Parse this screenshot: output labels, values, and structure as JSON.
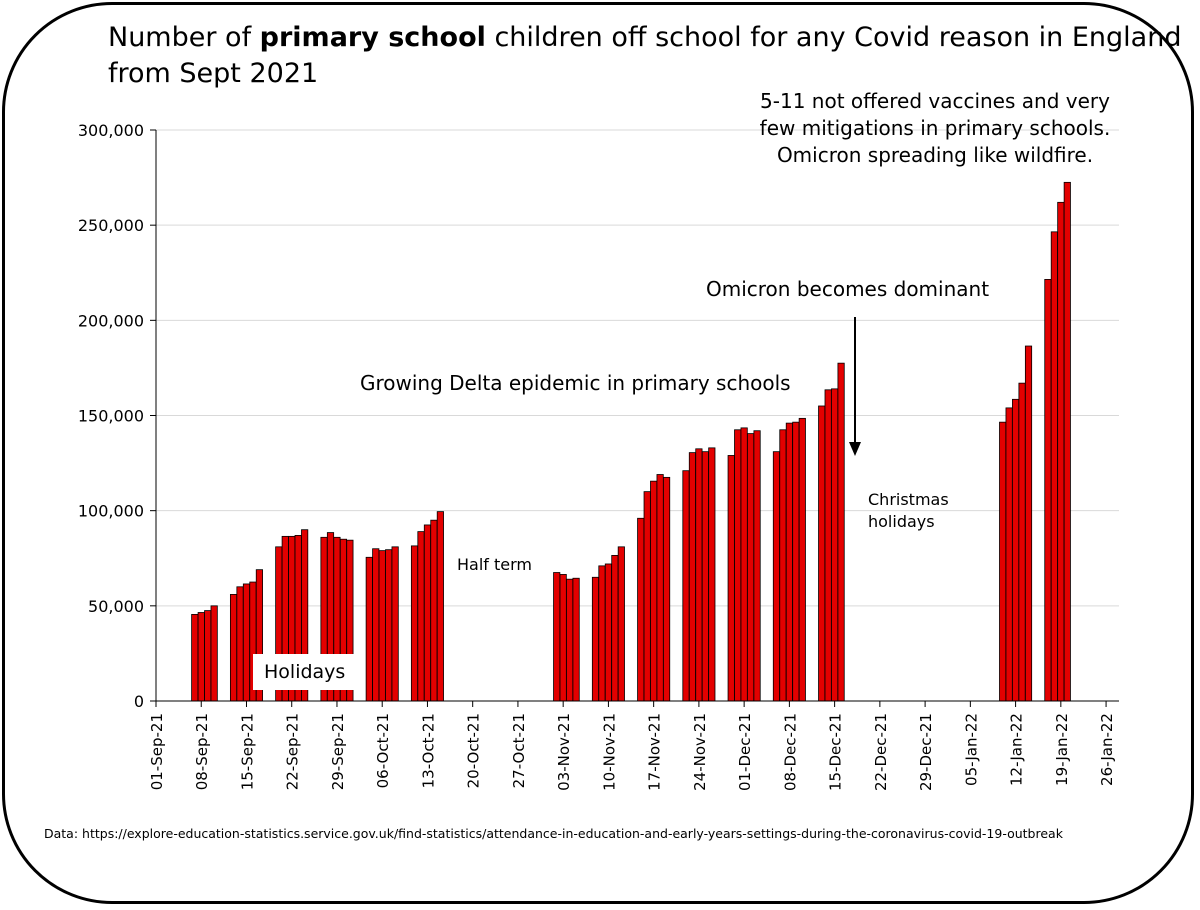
{
  "title": {
    "prefix": "Number of ",
    "bold": "primary school",
    "suffix": " children off school for any Covid reason in England",
    "line2": "from Sept 2021"
  },
  "source": "Data: https://explore-education-statistics.service.gov.uk/find-statistics/attendance-in-education-and-early-years-settings-during-the-coronavirus-covid-19-outbreak",
  "colors": {
    "bar": "#e30000",
    "grid": "#d9d9d9",
    "axis": "#000000"
  },
  "annotations": {
    "vaccines": [
      "5-11 not offered vaccines and very",
      "few mitigations in primary schools.",
      "Omicron spreading like wildfire."
    ],
    "omicron": "Omicron becomes dominant",
    "delta": "Growing Delta epidemic in primary schools",
    "half_term": "Half term",
    "christmas": [
      "Christmas",
      "holidays"
    ],
    "holidays": "Holidays"
  },
  "chart_data": {
    "type": "bar",
    "xlabel": "",
    "ylabel": "",
    "ylim": [
      0,
      300000
    ],
    "grid": true,
    "yticks": [
      0,
      50000,
      100000,
      150000,
      200000,
      250000,
      300000
    ],
    "ytick_labels": [
      "0",
      "50,000",
      "100,000",
      "150,000",
      "200,000",
      "250,000",
      "300,000"
    ],
    "xlim": [
      "2021-09-01",
      "2022-01-28"
    ],
    "xticks": [
      "2021-09-01",
      "2021-09-08",
      "2021-09-15",
      "2021-09-22",
      "2021-09-29",
      "2021-10-06",
      "2021-10-13",
      "2021-10-20",
      "2021-10-27",
      "2021-11-03",
      "2021-11-10",
      "2021-11-17",
      "2021-11-24",
      "2021-12-01",
      "2021-12-08",
      "2021-12-15",
      "2021-12-22",
      "2021-12-29",
      "2022-01-05",
      "2022-01-12",
      "2022-01-19",
      "2022-01-26"
    ],
    "xtick_labels": [
      "01-Sep-21",
      "08-Sep-21",
      "15-Sep-21",
      "22-Sep-21",
      "29-Sep-21",
      "06-Oct-21",
      "13-Oct-21",
      "20-Oct-21",
      "27-Oct-21",
      "03-Nov-21",
      "10-Nov-21",
      "17-Nov-21",
      "24-Nov-21",
      "01-Dec-21",
      "08-Dec-21",
      "15-Dec-21",
      "22-Dec-21",
      "29-Dec-21",
      "05-Jan-22",
      "12-Jan-22",
      "19-Jan-22",
      "26-Jan-22"
    ],
    "points": [
      {
        "x": "2021-09-07",
        "y": 45500
      },
      {
        "x": "2021-09-08",
        "y": 46500
      },
      {
        "x": "2021-09-09",
        "y": 47500
      },
      {
        "x": "2021-09-10",
        "y": 50000
      },
      {
        "x": "2021-09-13",
        "y": 56000
      },
      {
        "x": "2021-09-14",
        "y": 60000
      },
      {
        "x": "2021-09-15",
        "y": 61500
      },
      {
        "x": "2021-09-16",
        "y": 62500
      },
      {
        "x": "2021-09-17",
        "y": 69000
      },
      {
        "x": "2021-09-20",
        "y": 81000
      },
      {
        "x": "2021-09-21",
        "y": 86500
      },
      {
        "x": "2021-09-22",
        "y": 86500
      },
      {
        "x": "2021-09-23",
        "y": 87000
      },
      {
        "x": "2021-09-24",
        "y": 90000
      },
      {
        "x": "2021-09-27",
        "y": 86000
      },
      {
        "x": "2021-09-28",
        "y": 88500
      },
      {
        "x": "2021-09-29",
        "y": 86000
      },
      {
        "x": "2021-09-30",
        "y": 85000
      },
      {
        "x": "2021-10-01",
        "y": 84500
      },
      {
        "x": "2021-10-04",
        "y": 75500
      },
      {
        "x": "2021-10-05",
        "y": 80000
      },
      {
        "x": "2021-10-06",
        "y": 79000
      },
      {
        "x": "2021-10-07",
        "y": 79500
      },
      {
        "x": "2021-10-08",
        "y": 81000
      },
      {
        "x": "2021-10-11",
        "y": 81500
      },
      {
        "x": "2021-10-12",
        "y": 89000
      },
      {
        "x": "2021-10-13",
        "y": 92500
      },
      {
        "x": "2021-10-14",
        "y": 95000
      },
      {
        "x": "2021-10-15",
        "y": 99500
      },
      {
        "x": "2021-11-02",
        "y": 67500
      },
      {
        "x": "2021-11-03",
        "y": 66500
      },
      {
        "x": "2021-11-04",
        "y": 64000
      },
      {
        "x": "2021-11-05",
        "y": 64500
      },
      {
        "x": "2021-11-08",
        "y": 65000
      },
      {
        "x": "2021-11-09",
        "y": 71000
      },
      {
        "x": "2021-11-10",
        "y": 72000
      },
      {
        "x": "2021-11-11",
        "y": 76500
      },
      {
        "x": "2021-11-12",
        "y": 81000
      },
      {
        "x": "2021-11-15",
        "y": 96000
      },
      {
        "x": "2021-11-16",
        "y": 110000
      },
      {
        "x": "2021-11-17",
        "y": 115500
      },
      {
        "x": "2021-11-18",
        "y": 119000
      },
      {
        "x": "2021-11-19",
        "y": 117500
      },
      {
        "x": "2021-11-22",
        "y": 121000
      },
      {
        "x": "2021-11-23",
        "y": 130500
      },
      {
        "x": "2021-11-24",
        "y": 132500
      },
      {
        "x": "2021-11-25",
        "y": 131000
      },
      {
        "x": "2021-11-26",
        "y": 133000
      },
      {
        "x": "2021-11-29",
        "y": 129000
      },
      {
        "x": "2021-11-30",
        "y": 142500
      },
      {
        "x": "2021-12-01",
        "y": 143500
      },
      {
        "x": "2021-12-02",
        "y": 140500
      },
      {
        "x": "2021-12-03",
        "y": 142000
      },
      {
        "x": "2021-12-06",
        "y": 131000
      },
      {
        "x": "2021-12-07",
        "y": 142500
      },
      {
        "x": "2021-12-08",
        "y": 146000
      },
      {
        "x": "2021-12-09",
        "y": 146500
      },
      {
        "x": "2021-12-10",
        "y": 148500
      },
      {
        "x": "2021-12-13",
        "y": 155000
      },
      {
        "x": "2021-12-14",
        "y": 163500
      },
      {
        "x": "2021-12-15",
        "y": 164000
      },
      {
        "x": "2021-12-16",
        "y": 177500
      },
      {
        "x": "2022-01-10",
        "y": 146500
      },
      {
        "x": "2022-01-11",
        "y": 154000
      },
      {
        "x": "2022-01-12",
        "y": 158500
      },
      {
        "x": "2022-01-13",
        "y": 167000
      },
      {
        "x": "2022-01-14",
        "y": 186500
      },
      {
        "x": "2022-01-17",
        "y": 221500
      },
      {
        "x": "2022-01-18",
        "y": 246500
      },
      {
        "x": "2022-01-19",
        "y": 262000
      },
      {
        "x": "2022-01-20",
        "y": 272500
      }
    ]
  }
}
